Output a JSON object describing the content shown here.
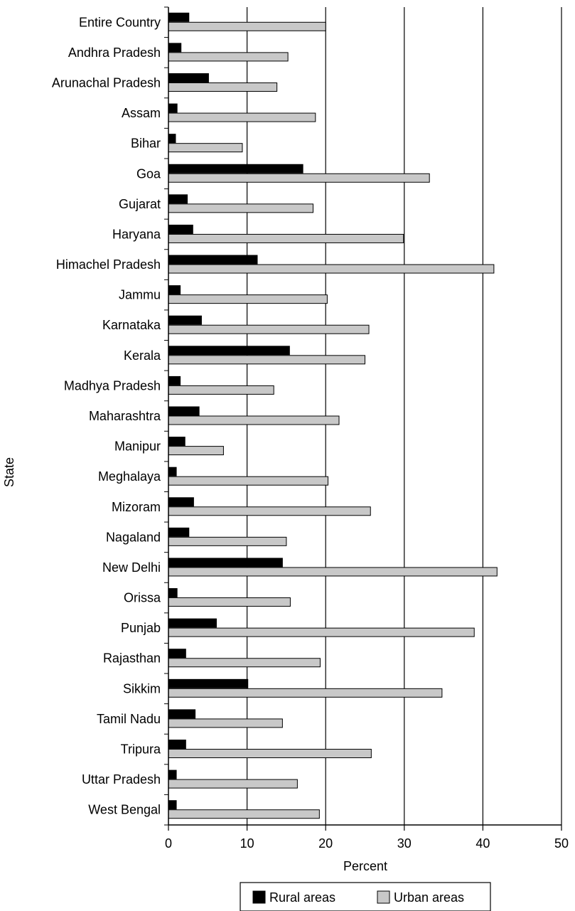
{
  "chart_data": {
    "type": "bar",
    "orientation": "horizontal",
    "categories": [
      "Entire Country",
      "Andhra Pradesh",
      "Arunachal Pradesh",
      "Assam",
      "Bihar",
      "Goa",
      "Gujarat",
      "Haryana",
      "Himachel Pradesh",
      "Jammu",
      "Karnataka",
      "Kerala",
      "Madhya Pradesh",
      "Maharashtra",
      "Manipur",
      "Meghalaya",
      "Mizoram",
      "Nagaland",
      "New Delhi",
      "Orissa",
      "Punjab",
      "Rajasthan",
      "Sikkim",
      "Tamil Nadu",
      "Tripura",
      "Uttar Pradesh",
      "West Bengal"
    ],
    "series": [
      {
        "name": "Rural areas",
        "color": "#000000",
        "values": [
          2.6,
          1.6,
          5.1,
          1.1,
          0.9,
          17.1,
          2.4,
          3.1,
          11.3,
          1.5,
          4.2,
          15.4,
          1.5,
          3.9,
          2.1,
          1.0,
          3.2,
          2.6,
          14.5,
          1.1,
          6.1,
          2.2,
          10.1,
          3.4,
          2.2,
          1.0,
          1.0
        ]
      },
      {
        "name": "Urban areas",
        "color": "#c8c8c8",
        "values": [
          20.0,
          15.2,
          13.8,
          18.7,
          9.4,
          33.2,
          18.4,
          29.9,
          41.4,
          20.2,
          25.5,
          25.0,
          13.4,
          21.7,
          7.0,
          20.3,
          25.7,
          15.0,
          41.8,
          15.5,
          38.9,
          19.3,
          34.8,
          14.5,
          25.8,
          16.4,
          19.2
        ]
      }
    ],
    "xlabel": "Percent",
    "ylabel": "State",
    "xlim": [
      0,
      50
    ],
    "xticks": [
      "0",
      "10",
      "20",
      "30",
      "40",
      "50"
    ],
    "grid": true,
    "legend_position": "bottom"
  }
}
